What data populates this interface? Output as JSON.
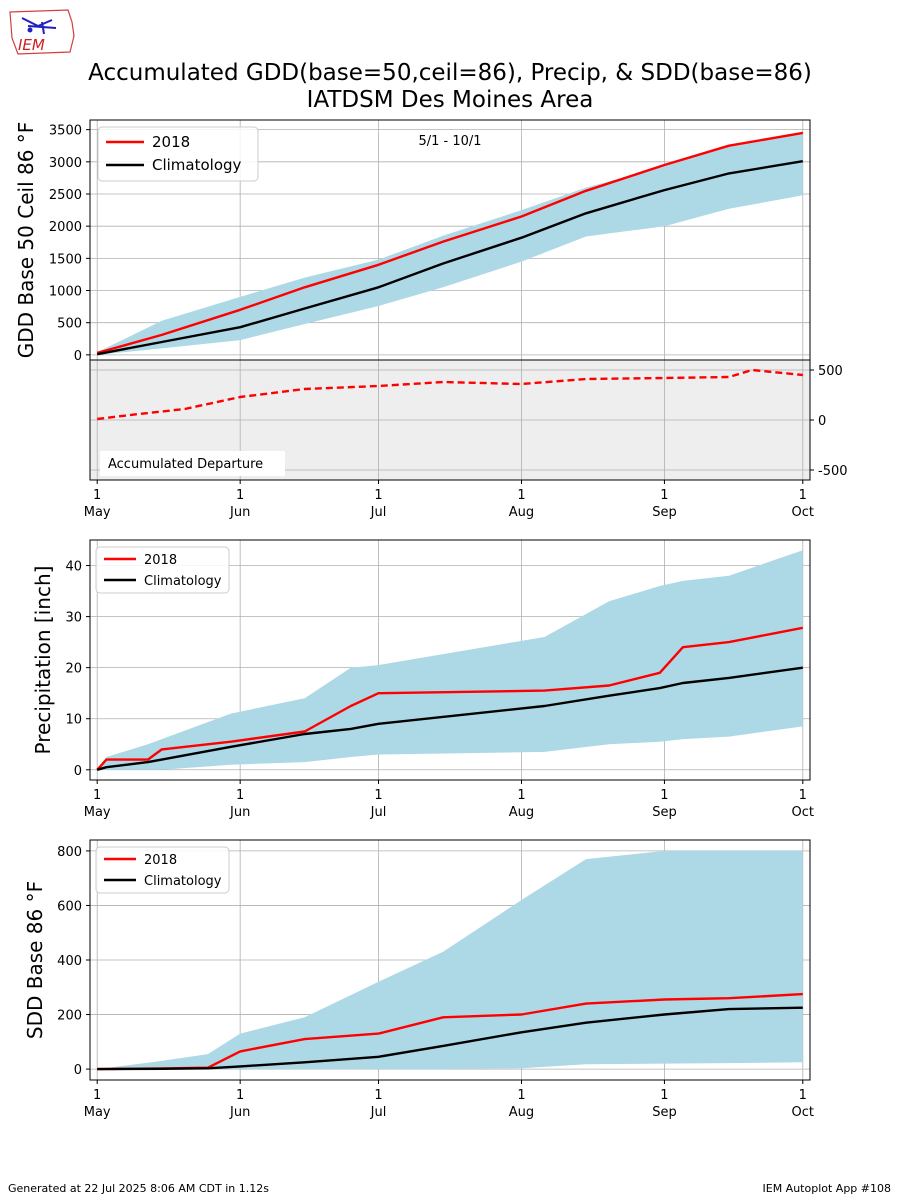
{
  "page": {
    "title_line1": "Accumulated GDD(base=50,ceil=86), Precip, & SDD(base=86)",
    "title_line2": "IATDSM Des Moines Area",
    "footer_left": "Generated at 22 Jul 2025 8:06 AM CDT in 1.12s",
    "footer_right": "IEM Autoplot App #108",
    "logo_text": "IEM"
  },
  "colors": {
    "observed": "#ff0000",
    "climatology": "#000000",
    "range_fill": "#add8e6",
    "departure_bg": "#eeeeee",
    "grid": "#b0b0b0"
  },
  "chart_data": [
    {
      "type": "line",
      "id": "gdd",
      "ylabel": "GDD Base 50 Ceil 86 °F",
      "annotation": "5/1 - 10/1",
      "ylim": [
        -80,
        3650
      ],
      "yticks": [
        0,
        500,
        1000,
        1500,
        2000,
        2500,
        3000,
        3500
      ],
      "grid": true,
      "legend": "top-left",
      "x_ticks": [
        {
          "day": "1",
          "month": "May"
        },
        {
          "day": "1",
          "month": "Jun"
        },
        {
          "day": "1",
          "month": "Jul"
        },
        {
          "day": "1",
          "month": "Aug"
        },
        {
          "day": "1",
          "month": "Sep"
        },
        {
          "day": "1",
          "month": "Oct"
        }
      ],
      "x": [
        "2018-05-01",
        "2018-05-15",
        "2018-06-01",
        "2018-06-15",
        "2018-07-01",
        "2018-07-15",
        "2018-08-01",
        "2018-08-15",
        "2018-09-01",
        "2018-09-15",
        "2018-10-01"
      ],
      "series": [
        {
          "name": "2018",
          "values": [
            30,
            310,
            700,
            1050,
            1400,
            1760,
            2150,
            2550,
            2950,
            3250,
            3450
          ]
        },
        {
          "name": "Climatology",
          "values": [
            10,
            200,
            430,
            720,
            1050,
            1420,
            1820,
            2200,
            2560,
            2820,
            3010
          ]
        }
      ],
      "range": {
        "upper": [
          40,
          530,
          900,
          1200,
          1480,
          1850,
          2250,
          2600,
          2930,
          3250,
          3450
        ],
        "lower": [
          0,
          100,
          230,
          480,
          760,
          1050,
          1450,
          1840,
          2000,
          2270,
          2480
        ]
      }
    },
    {
      "type": "line",
      "id": "departure",
      "label": "Accumulated Departure",
      "ylim": [
        -600,
        600
      ],
      "yticks": [
        -500,
        0,
        500
      ],
      "x": [
        "2018-05-01",
        "2018-05-10",
        "2018-05-20",
        "2018-06-01",
        "2018-06-15",
        "2018-07-01",
        "2018-07-15",
        "2018-08-01",
        "2018-08-15",
        "2018-09-01",
        "2018-09-15",
        "2018-09-20",
        "2018-10-01"
      ],
      "series": [
        {
          "name": "2018 departure",
          "values": [
            10,
            60,
            110,
            230,
            310,
            340,
            380,
            360,
            410,
            420,
            430,
            500,
            450
          ]
        }
      ]
    },
    {
      "type": "line",
      "id": "precip",
      "ylabel": "Precipitation [inch]",
      "ylim": [
        -2,
        45
      ],
      "yticks": [
        0,
        10,
        20,
        30,
        40
      ],
      "grid": true,
      "legend": "top-left",
      "x": [
        "2018-05-01",
        "2018-05-03",
        "2018-05-12",
        "2018-05-15",
        "2018-05-30",
        "2018-06-15",
        "2018-06-25",
        "2018-07-01",
        "2018-08-06",
        "2018-08-20",
        "2018-08-31",
        "2018-09-05",
        "2018-09-15",
        "2018-10-01"
      ],
      "series": [
        {
          "name": "2018",
          "values": [
            0,
            2,
            2,
            4,
            5.5,
            7.5,
            12.5,
            15,
            15.5,
            16.5,
            19,
            24,
            25,
            27.8
          ]
        },
        {
          "name": "Climatology",
          "values": [
            0,
            0.5,
            1.5,
            2,
            4.5,
            7,
            8,
            9,
            12.5,
            14.5,
            16,
            17,
            18,
            20
          ]
        }
      ],
      "range": {
        "upper": [
          0,
          2.5,
          5,
          6,
          11,
          14,
          20,
          20.5,
          26,
          33,
          36,
          37,
          38,
          43
        ],
        "lower": [
          0,
          0,
          0,
          0,
          1,
          1.5,
          2.5,
          3,
          3.5,
          5,
          5.5,
          6,
          6.5,
          8.5
        ]
      }
    },
    {
      "type": "line",
      "id": "sdd",
      "ylabel": "SDD Base 86 °F",
      "ylim": [
        -40,
        840
      ],
      "yticks": [
        0,
        200,
        400,
        600,
        800
      ],
      "grid": true,
      "legend": "top-left",
      "x": [
        "2018-05-01",
        "2018-05-15",
        "2018-05-25",
        "2018-06-01",
        "2018-06-15",
        "2018-07-01",
        "2018-07-15",
        "2018-08-01",
        "2018-08-15",
        "2018-09-01",
        "2018-09-15",
        "2018-10-01"
      ],
      "series": [
        {
          "name": "2018",
          "values": [
            0,
            2,
            5,
            65,
            110,
            130,
            190,
            200,
            240,
            255,
            260,
            275
          ]
        },
        {
          "name": "Climatology",
          "values": [
            0,
            1,
            3,
            10,
            25,
            45,
            85,
            135,
            170,
            200,
            220,
            225
          ]
        }
      ],
      "range": {
        "upper": [
          0,
          30,
          55,
          130,
          190,
          320,
          430,
          620,
          770,
          800,
          800,
          800
        ],
        "lower": [
          0,
          0,
          0,
          0,
          0,
          0,
          0,
          3,
          18,
          20,
          22,
          25
        ]
      }
    }
  ]
}
